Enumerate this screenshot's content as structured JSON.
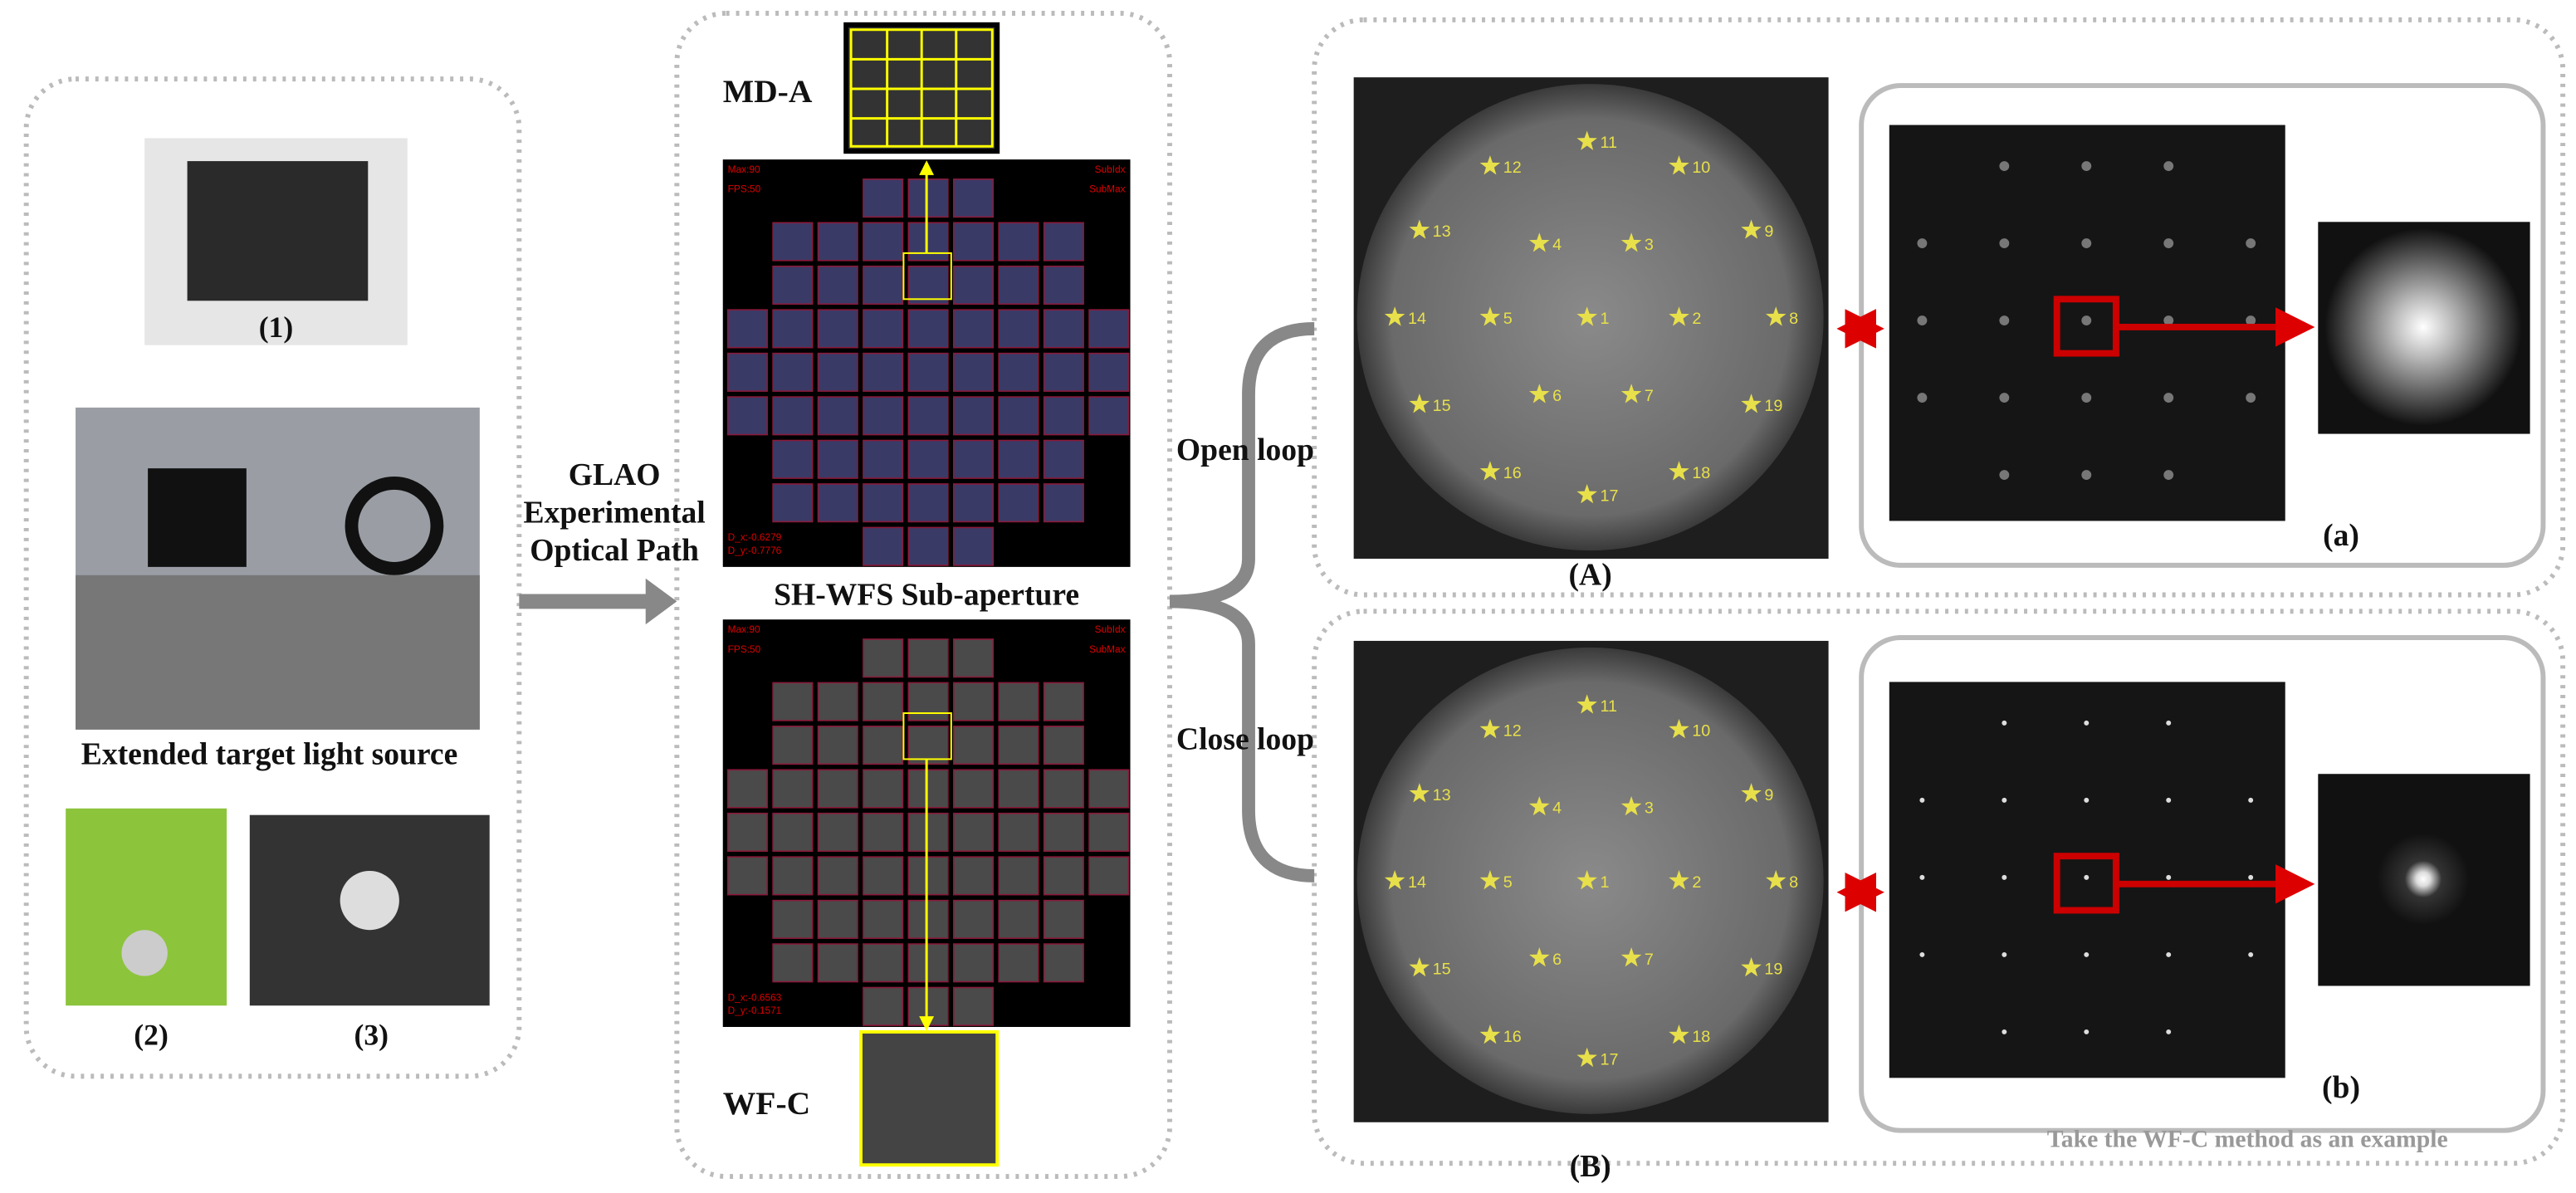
{
  "left_panel": {
    "labels": [
      "(1)",
      "(2)",
      "(3)"
    ],
    "caption": "Extended target light source"
  },
  "arrow_label": [
    "GLAO",
    "Experimental",
    "Optical Path"
  ],
  "center": {
    "top_label": "MD-A",
    "middle_label": "SH-WFS Sub-aperture",
    "bottom_label": "WF-C",
    "overlay_top": [
      "Max:90",
      "FPS:50",
      "SubIdx",
      "SubMax",
      "D_x:-0.6279",
      "D_y:-0.7776"
    ],
    "overlay_bottom": [
      "Max:90",
      "FPS:50",
      "SubIdx",
      "SubMax",
      "D_x:-0.6563",
      "D_y:-0.1571"
    ]
  },
  "loops": [
    {
      "label": "Open loop",
      "panel": "(A)",
      "spot": "(a)"
    },
    {
      "label": "Close loop",
      "panel": "(B)",
      "spot": "(b)"
    }
  ],
  "stars": [
    "11",
    "12",
    "10",
    "13",
    "4",
    "3",
    "9",
    "14",
    "5",
    "1",
    "2",
    "8",
    "15",
    "6",
    "7",
    "19",
    "16",
    "17",
    "18"
  ],
  "note": "Take the WF-C method as an example"
}
